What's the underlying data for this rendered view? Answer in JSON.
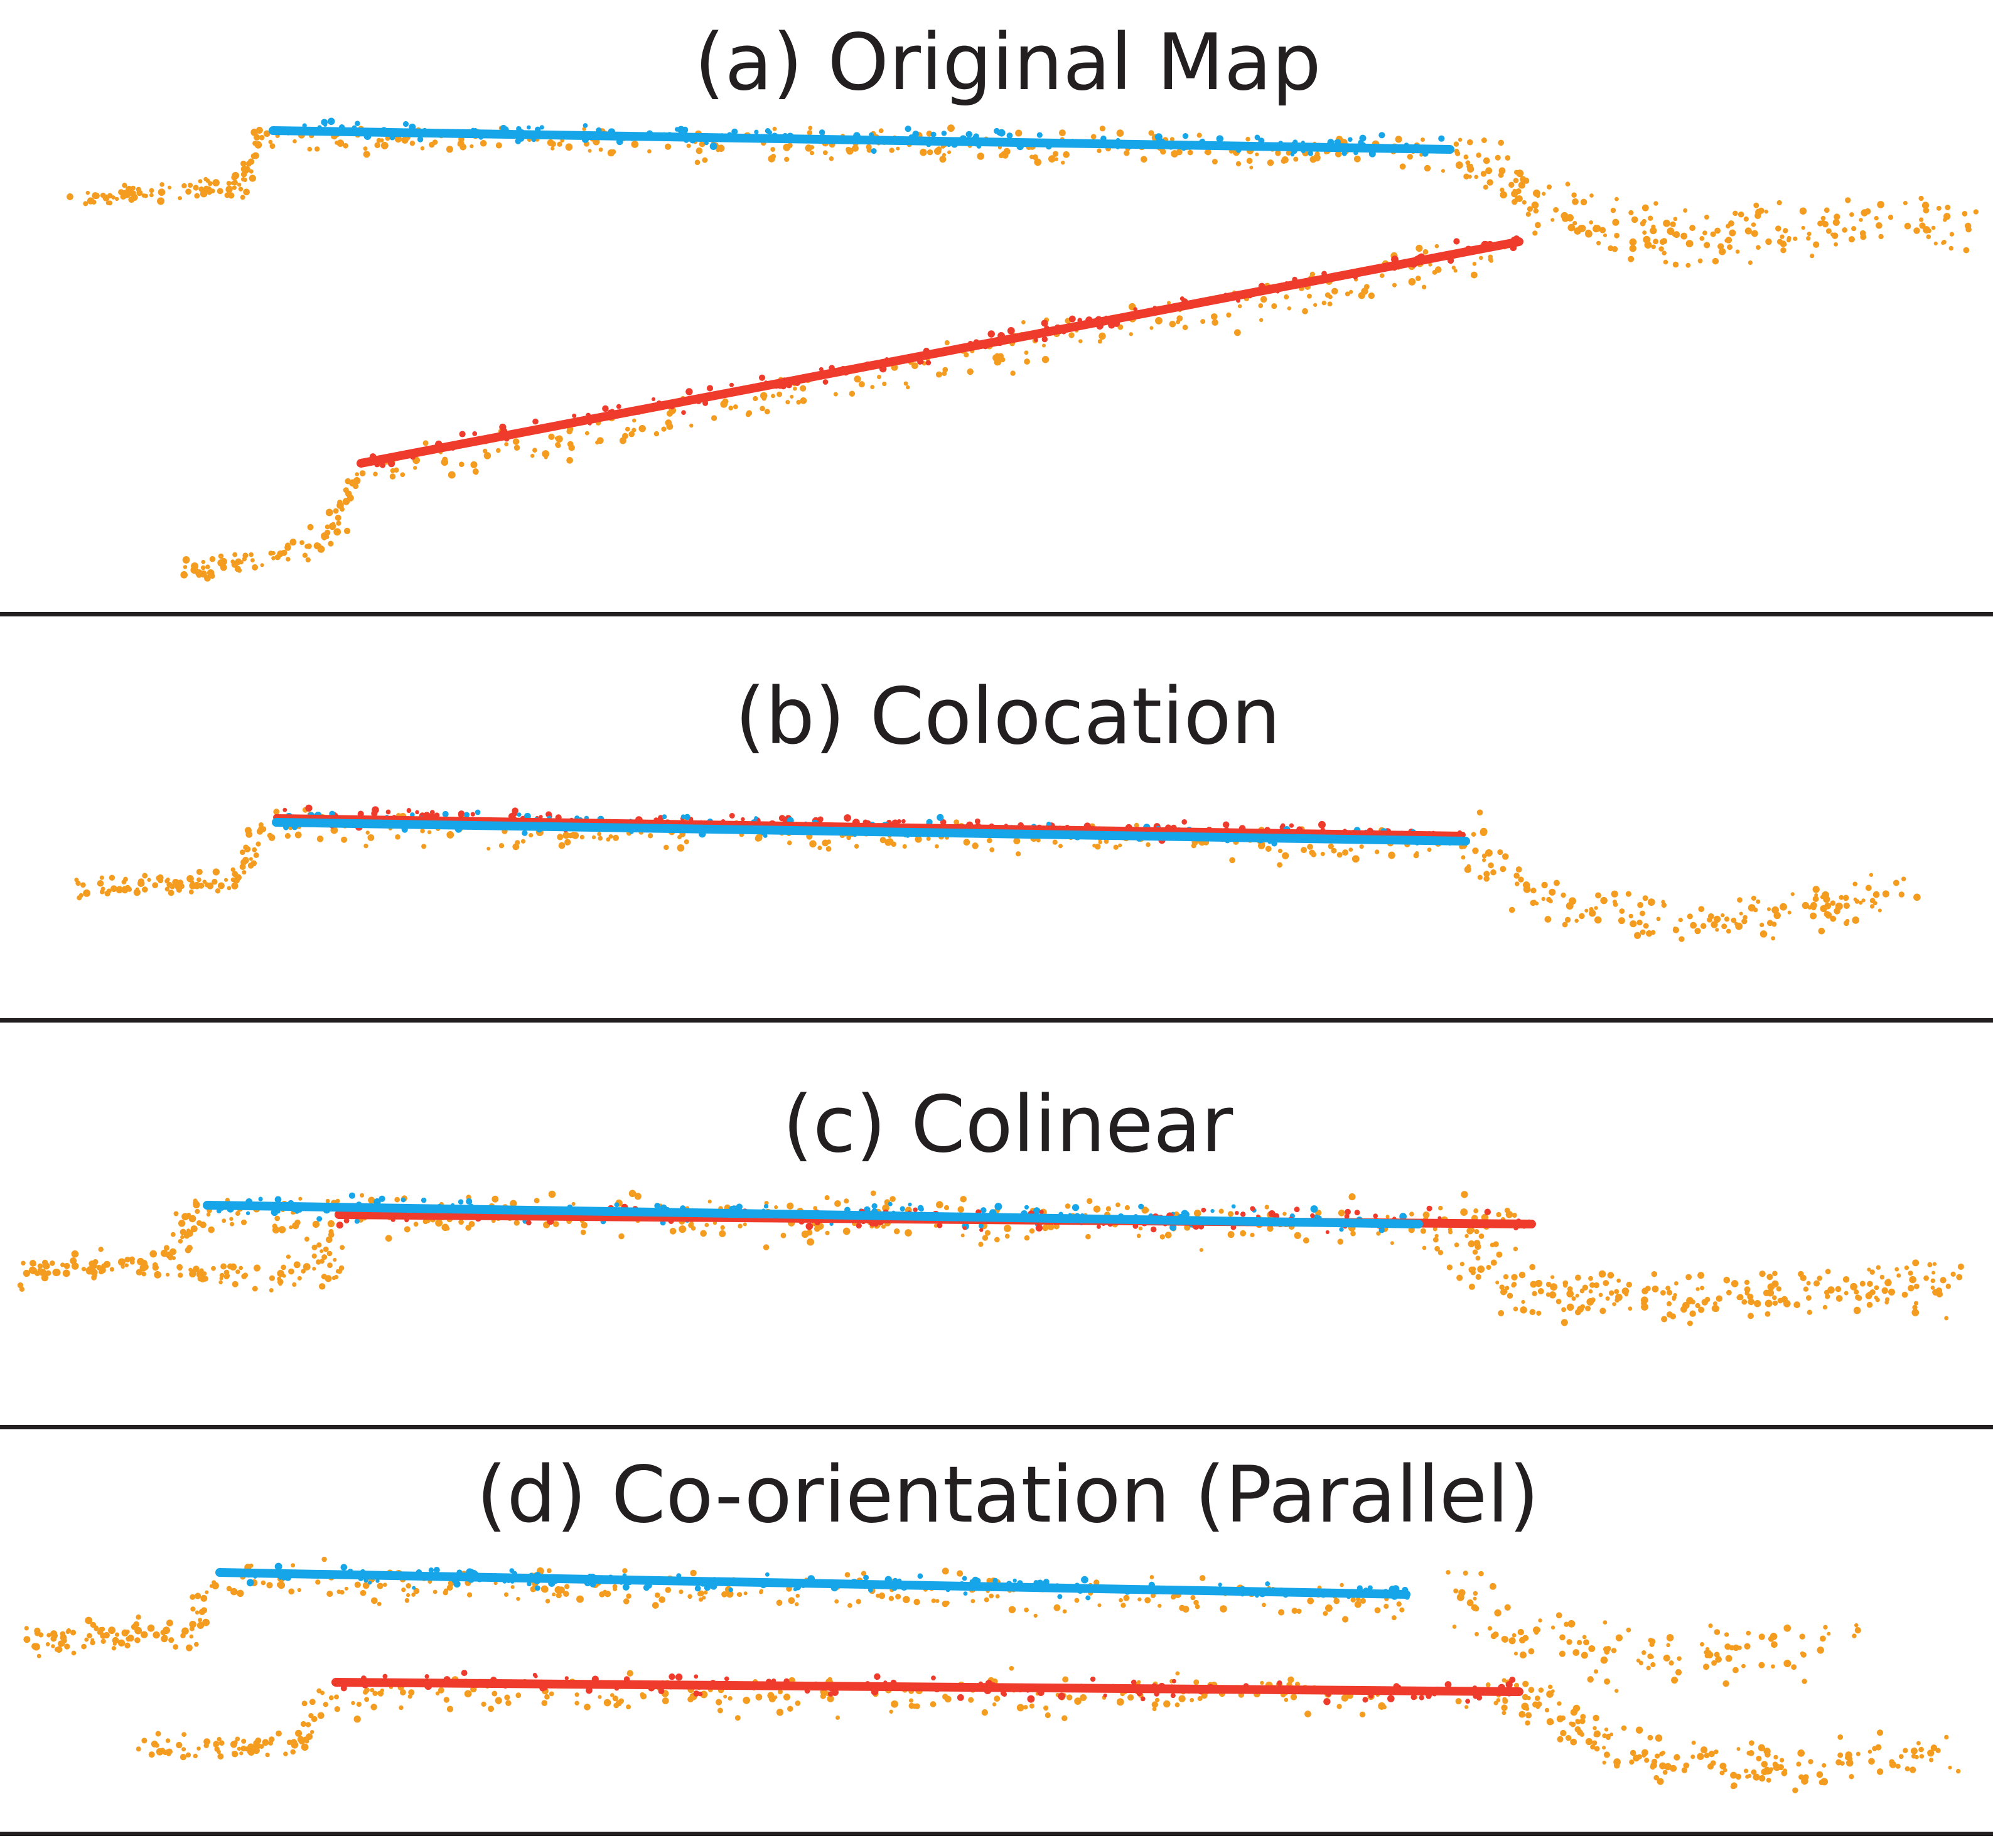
{
  "colors": {
    "scan_points": "#f39c1f",
    "blue_segment": "#16a5e8",
    "red_segment": "#ee3b2b",
    "text": "#231f20",
    "divider": "#231f20"
  },
  "panels": [
    {
      "id": "a",
      "title": "(a) Original Map"
    },
    {
      "id": "b",
      "title": "(b) Colocation"
    },
    {
      "id": "c",
      "title": "(c) Colinear"
    },
    {
      "id": "d",
      "title": "(d) Co-orientation (Parallel)"
    }
  ]
}
